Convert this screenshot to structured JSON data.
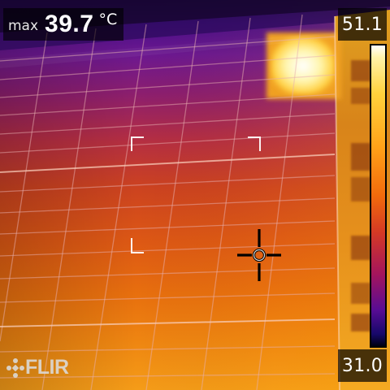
{
  "overlay": {
    "max_label": "max",
    "max_value": "39.7",
    "unit": "°C"
  },
  "scale": {
    "max": "51.1",
    "min": "31.0"
  },
  "brand": {
    "logo_text": "FLIR"
  },
  "icons": {
    "measurement_spot": "crosshair-icon",
    "focus_frame": "corner-bracket-icon",
    "logo_mark": "flir-logo-icon"
  },
  "palette": {
    "white_hot": "#ffffff",
    "yellow": "#ffd23c",
    "orange": "#f16a0c",
    "red": "#d53a24",
    "magenta": "#a4155c",
    "purple": "#580c94",
    "cold": "#16086a"
  }
}
